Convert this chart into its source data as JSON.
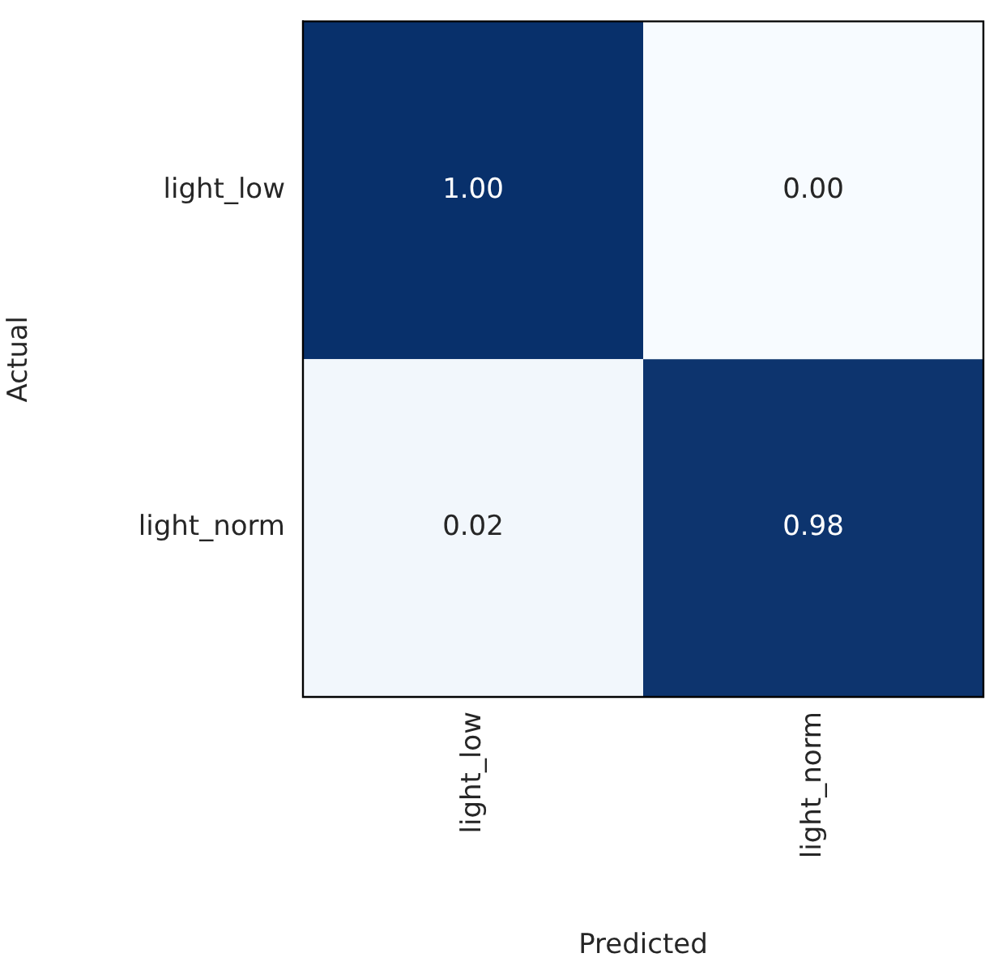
{
  "chart_data": {
    "type": "heatmap",
    "xlabel": "Predicted",
    "ylabel": "Actual",
    "categories": [
      "light_low",
      "light_norm"
    ],
    "y_categories": [
      "light_low",
      "light_norm"
    ],
    "cells": [
      [
        1.0,
        0.0
      ],
      [
        0.02,
        0.98
      ]
    ],
    "cell_labels": [
      [
        "1.00",
        "0.00"
      ],
      [
        "0.02",
        "0.98"
      ]
    ],
    "grid": false
  }
}
